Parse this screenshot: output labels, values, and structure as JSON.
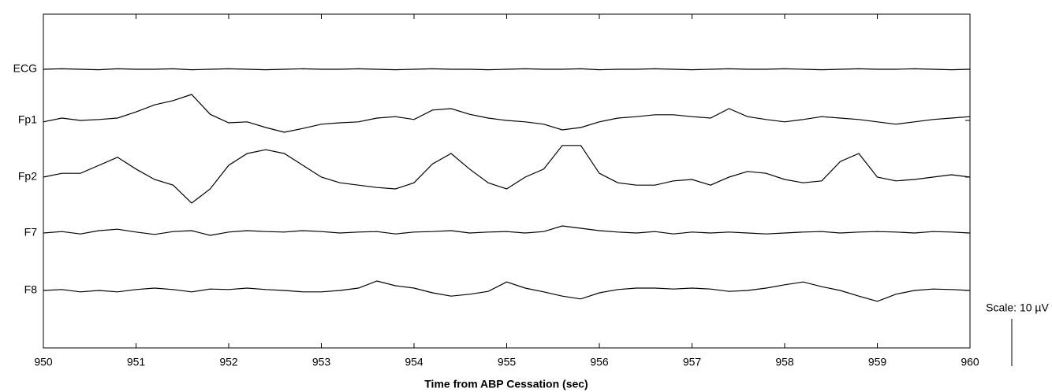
{
  "chart_data": {
    "type": "eeg",
    "x_label": "Time from ABP Cessation (sec)",
    "x": [
      950.0,
      950.2,
      950.4,
      950.6,
      950.8,
      951.0,
      951.2,
      951.4,
      951.6,
      951.8,
      952.0,
      952.2,
      952.4,
      952.6,
      952.8,
      953.0,
      953.2,
      953.4,
      953.6,
      953.8,
      954.0,
      954.2,
      954.4,
      954.6,
      954.8,
      955.0,
      955.2,
      955.4,
      955.6,
      955.8,
      956.0,
      956.2,
      956.4,
      956.6,
      956.8,
      957.0,
      957.2,
      957.4,
      957.6,
      957.8,
      958.0,
      958.2,
      958.4,
      958.6,
      958.8,
      959.0,
      959.2,
      959.4,
      959.6,
      959.8,
      960.0
    ],
    "xlim": [
      950,
      960
    ],
    "xticks": [
      950,
      951,
      952,
      953,
      954,
      955,
      956,
      957,
      958,
      959,
      960
    ],
    "scale": {
      "value": 10,
      "label": "Scale: 10 µV"
    },
    "series": [
      {
        "name": "ECG",
        "color": "#000000",
        "values": [
          0,
          0.1,
          0,
          -0.1,
          0.1,
          0,
          0,
          0.1,
          -0.1,
          0,
          0.1,
          0,
          -0.1,
          0,
          0.1,
          0,
          0,
          0.1,
          0,
          -0.1,
          0,
          0.1,
          0,
          0,
          -0.1,
          0,
          0.1,
          0,
          0,
          0.1,
          -0.1,
          0,
          0,
          0.1,
          0,
          -0.1,
          0,
          0.1,
          0,
          0,
          0.1,
          0,
          -0.1,
          0,
          0.1,
          0,
          0,
          0.1,
          0,
          -0.1,
          0
        ]
      },
      {
        "name": "Fp1",
        "color": "#000000",
        "values": [
          -0.3,
          0.5,
          0,
          0.2,
          0.5,
          1.8,
          3.3,
          4.2,
          5.5,
          1.3,
          -0.5,
          -0.3,
          -1.5,
          -2.5,
          -1.7,
          -0.8,
          -0.5,
          -0.3,
          0.5,
          0.8,
          0.2,
          2.2,
          2.5,
          1.3,
          0.5,
          0,
          -0.3,
          -0.8,
          -2,
          -1.5,
          -0.3,
          0.5,
          0.8,
          1.2,
          1.2,
          0.8,
          0.5,
          2.5,
          0.8,
          0.2,
          -0.3,
          0.2,
          0.8,
          0.5,
          0.2,
          -0.3,
          -0.8,
          -0.3,
          0.2,
          0.5,
          0.8
        ]
      },
      {
        "name": "Fp2",
        "color": "#000000",
        "values": [
          0,
          0.8,
          0.8,
          2.5,
          4.2,
          1.7,
          -0.5,
          -1.7,
          -5.5,
          -2.5,
          2.5,
          5,
          5.8,
          5,
          2.5,
          0,
          -1.2,
          -1.7,
          -2.2,
          -2.5,
          -1.2,
          2.8,
          5,
          1.7,
          -1.2,
          -2.5,
          0,
          1.7,
          6.7,
          6.7,
          0.8,
          -1.2,
          -1.7,
          -1.7,
          -0.8,
          -0.5,
          -1.7,
          0,
          1.2,
          0.8,
          -0.5,
          -1.2,
          -0.8,
          3.3,
          5,
          0,
          -0.8,
          -0.5,
          0,
          0.5,
          0
        ]
      },
      {
        "name": "F7",
        "color": "#000000",
        "values": [
          0,
          0.3,
          -0.2,
          0.5,
          0.8,
          0.2,
          -0.3,
          0.3,
          0.5,
          -0.5,
          0.2,
          0.5,
          0.3,
          0.2,
          0.5,
          0.3,
          0,
          0.2,
          0.3,
          -0.2,
          0.2,
          0.3,
          0.5,
          0,
          0.2,
          0.3,
          0,
          0.3,
          1.5,
          1,
          0.5,
          0.2,
          0,
          0.3,
          -0.2,
          0.2,
          0,
          0.2,
          0,
          -0.2,
          0,
          0.2,
          0.3,
          0,
          0.2,
          0.3,
          0.2,
          0,
          0.3,
          0.2,
          0
        ]
      },
      {
        "name": "F8",
        "color": "#000000",
        "values": [
          0,
          0.2,
          -0.3,
          0,
          -0.3,
          0.2,
          0.5,
          0.2,
          -0.3,
          0.3,
          0.2,
          0.5,
          0.2,
          0,
          -0.3,
          -0.3,
          0,
          0.5,
          2,
          1,
          0.5,
          -0.5,
          -1.2,
          -0.8,
          -0.2,
          1.8,
          0.5,
          -0.3,
          -1.2,
          -1.8,
          -0.5,
          0.2,
          0.5,
          0.5,
          0.3,
          0.5,
          0.3,
          -0.2,
          0,
          0.5,
          1.2,
          1.8,
          0.8,
          0,
          -1.2,
          -2.3,
          -0.8,
          0,
          0.3,
          0.2,
          0
        ]
      }
    ]
  }
}
